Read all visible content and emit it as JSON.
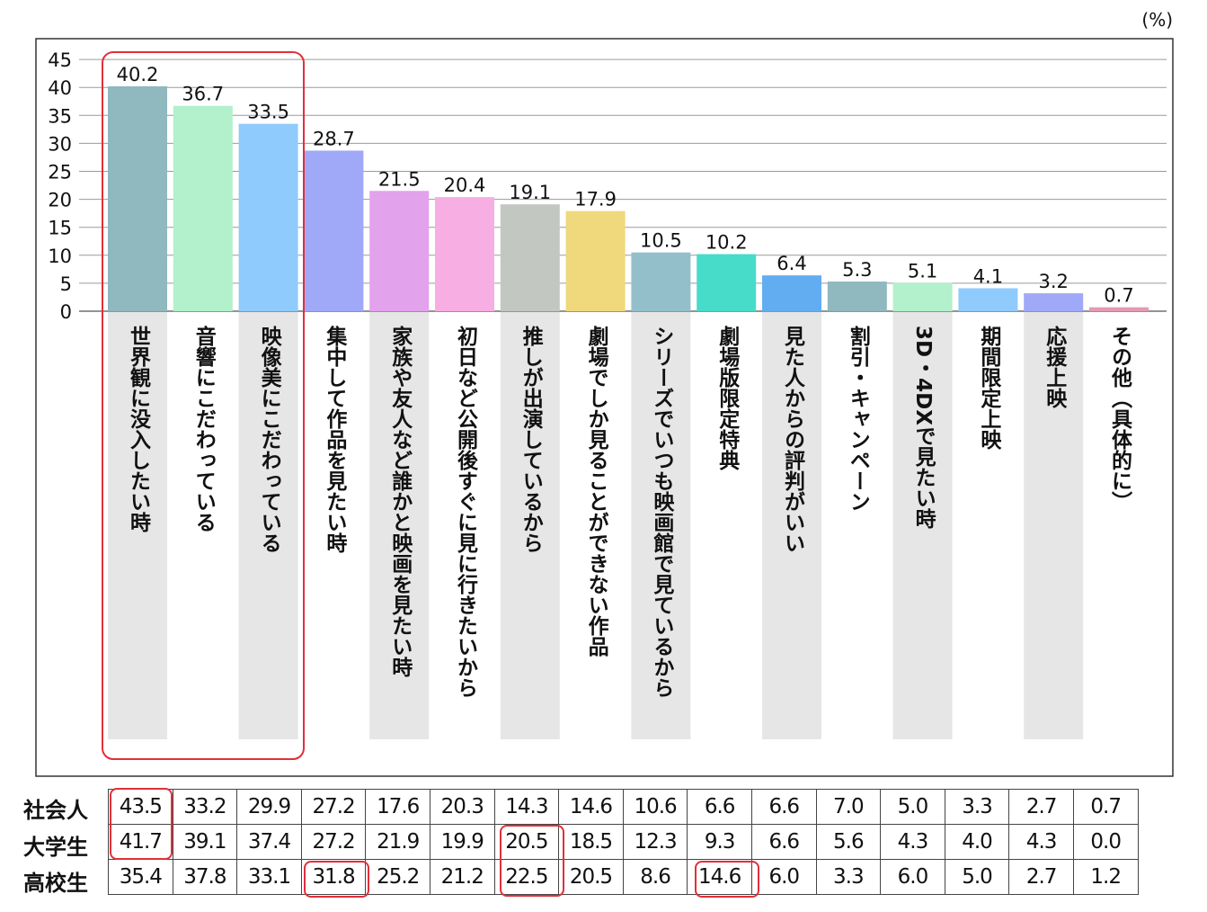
{
  "unit_label": "(%)",
  "chart_data": {
    "type": "bar",
    "ylim": [
      0,
      45
    ],
    "yticks": [
      0,
      5,
      10,
      15,
      20,
      25,
      30,
      35,
      40,
      45
    ],
    "grid": true,
    "categories": [
      "世界観に没入したい時",
      "音響にこだわっている",
      "映像美にこだわっている",
      "集中して作品を見たい時",
      "家族や友人など誰かと映画を見たい時",
      "初日など公開後すぐに見に行きたいから",
      "推しが出演しているから",
      "劇場でしか見ることができない作品",
      "シリーズでいつも映画館で見ているから",
      "劇場版限定特典",
      "見た人からの評判がいい",
      "割引・キャンペーン",
      "3D・4DXで見たい時",
      "期間限定上映",
      "応援上映",
      "その他（具体的に）"
    ],
    "values": [
      40.2,
      36.7,
      33.5,
      28.7,
      21.5,
      20.4,
      19.1,
      17.9,
      10.5,
      10.2,
      6.4,
      5.3,
      5.1,
      4.1,
      3.2,
      0.7
    ],
    "value_labels": [
      "40.2",
      "36.7",
      "33.5",
      "28.7",
      "21.5",
      "20.4",
      "19.1",
      "17.9",
      "10.5",
      "10.2",
      "6.4",
      "5.3",
      "5.1",
      "4.1",
      "3.2",
      "0.7"
    ],
    "colors": [
      "#8fb8bf",
      "#b3f0cc",
      "#8fcbfd",
      "#a0a8f8",
      "#e2a2ec",
      "#f7aee3",
      "#c2c7c2",
      "#f0d87c",
      "#93bfcb",
      "#47dbca",
      "#62adf2",
      "#8fb8bf",
      "#b3f0cc",
      "#8fcbfd",
      "#a0a8f8",
      "#e39ab0"
    ],
    "table": {
      "rows": [
        {
          "name": "社会人",
          "values": [
            "43.5",
            "33.2",
            "29.9",
            "27.2",
            "17.6",
            "20.3",
            "14.3",
            "14.6",
            "10.6",
            "6.6",
            "6.6",
            "7.0",
            "5.0",
            "3.3",
            "2.7",
            "0.7"
          ]
        },
        {
          "name": "大学生",
          "values": [
            "41.7",
            "39.1",
            "37.4",
            "27.2",
            "21.9",
            "19.9",
            "20.5",
            "18.5",
            "12.3",
            "9.3",
            "6.6",
            "5.6",
            "4.3",
            "4.0",
            "4.3",
            "0.0"
          ]
        },
        {
          "name": "高校生",
          "values": [
            "35.4",
            "37.8",
            "33.1",
            "31.8",
            "25.2",
            "21.2",
            "22.5",
            "20.5",
            "8.6",
            "14.6",
            "6.0",
            "3.3",
            "6.0",
            "5.0",
            "2.7",
            "1.2"
          ]
        }
      ]
    }
  }
}
